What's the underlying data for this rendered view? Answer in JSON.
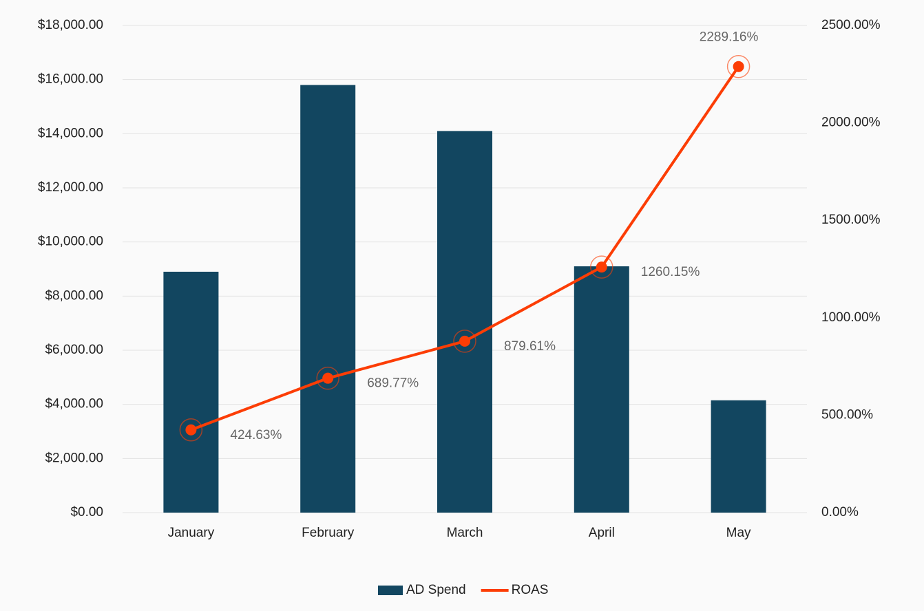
{
  "chart_data": {
    "type": "combo",
    "categories": [
      "January",
      "February",
      "March",
      "April",
      "May"
    ],
    "series": [
      {
        "name": "AD Spend",
        "type": "bar",
        "color": "#124660",
        "values": [
          8900,
          15800,
          14100,
          9100,
          4150
        ]
      },
      {
        "name": "ROAS",
        "type": "line",
        "axis": "y2",
        "color": "#fc3d05",
        "values": [
          424.63,
          689.77,
          879.61,
          1260.15,
          2289.16
        ],
        "value_labels": [
          "424.63%",
          "689.77%",
          "879.61%",
          "1260.15%",
          "2289.16%"
        ]
      }
    ],
    "ylim": [
      0,
      18000
    ],
    "yticks": [
      {
        "value": 0,
        "label": "$0.00"
      },
      {
        "value": 2000,
        "label": "$2,000.00"
      },
      {
        "value": 4000,
        "label": "$4,000.00"
      },
      {
        "value": 6000,
        "label": "$6,000.00"
      },
      {
        "value": 8000,
        "label": "$8,000.00"
      },
      {
        "value": 10000,
        "label": "$10,000.00"
      },
      {
        "value": 12000,
        "label": "$12,000.00"
      },
      {
        "value": 14000,
        "label": "$14,000.00"
      },
      {
        "value": 16000,
        "label": "$16,000.00"
      },
      {
        "value": 18000,
        "label": "$18,000.00"
      }
    ],
    "y2lim": [
      0,
      2500
    ],
    "y2ticks": [
      {
        "value": 0,
        "label": "0.00%"
      },
      {
        "value": 500,
        "label": "500.00%"
      },
      {
        "value": 1000,
        "label": "1000.00%"
      },
      {
        "value": 1500,
        "label": "1500.00%"
      },
      {
        "value": 2000,
        "label": "2000.00%"
      },
      {
        "value": 2500,
        "label": "2500.00%"
      }
    ],
    "grid": true,
    "legend": "bottom"
  }
}
